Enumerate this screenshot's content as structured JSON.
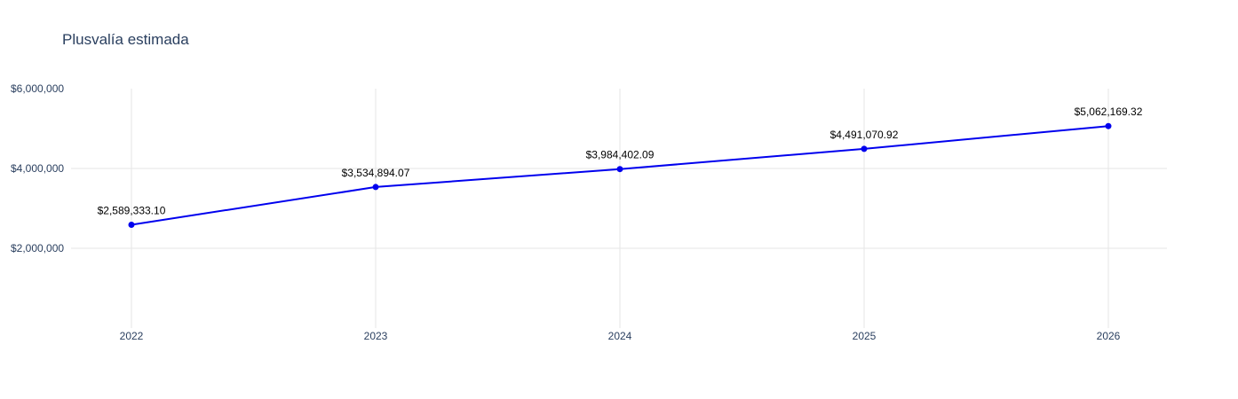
{
  "chart_data": {
    "type": "line",
    "title": "Plusvalía estimada",
    "xlabel": "",
    "ylabel": "",
    "x": [
      "2022",
      "2023",
      "2024",
      "2025",
      "2026"
    ],
    "series": [
      {
        "values": [
          2589333.1,
          3534894.07,
          3984402.09,
          4491070.92,
          5062169.32
        ],
        "labels": [
          "$2,589,333.10",
          "$3,534,894.07",
          "$3,984,402.09",
          "$4,491,070.92",
          "$5,062,169.32"
        ],
        "color": "#0000ee",
        "marker": "circle"
      }
    ],
    "ylim": [
      0,
      6000000
    ],
    "y_ticks": [
      {
        "value": 2000000,
        "label": "$2,000,000"
      },
      {
        "value": 4000000,
        "label": "$4,000,000"
      },
      {
        "value": 6000000,
        "label": "$6,000,000"
      }
    ],
    "grid": true,
    "legend": "none"
  }
}
